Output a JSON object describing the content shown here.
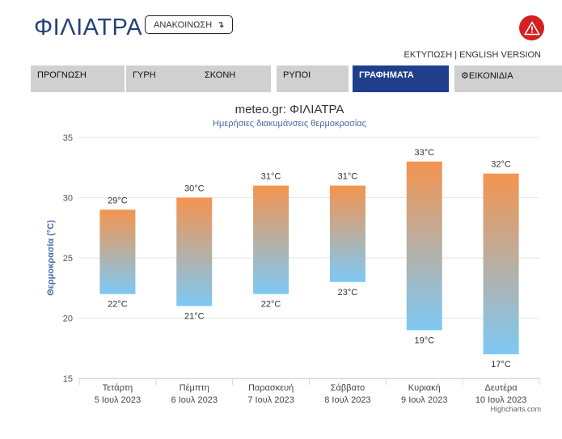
{
  "header": {
    "title": "ΦΙΛΙΑΤΡΑ",
    "announce_label": "ΑΝΑΚΟΙΝΩΣΗ",
    "print_label": "ΕΚΤΥΠΩΣΗ",
    "separator": "|",
    "english_label": "ENGLISH VERSION",
    "alert_color": "#d42020",
    "alert_icon": "warning-triangle-icon"
  },
  "tabs": [
    {
      "label": "ΠΡΟΓΝΩΣΗ",
      "active": false
    },
    {
      "label": "ΓΥΡΗ",
      "active": false
    },
    {
      "label": "ΣΚΟΝΗ",
      "active": false
    },
    {
      "label": "ΡΥΠΟΙ",
      "active": false
    },
    {
      "label": "ΓΡΑΦΗΜΑΤΑ",
      "active": true
    },
    {
      "label": "ΕΙΚΟΝΙΔΙΑ",
      "active": false,
      "icon": "gear-icon"
    }
  ],
  "chart_data": {
    "type": "bar",
    "subtype": "columnrange",
    "title": "meteo.gr: ΦΙΛΙΑΤΡΑ",
    "subtitle": "Ημερήσιες διακυμάνσεις θερμοκρασίας",
    "ylabel": "Θερμοκρασία (°C)",
    "xlabel": "",
    "ylim": [
      15,
      35
    ],
    "yticks": [
      15,
      20,
      25,
      30,
      35
    ],
    "grid": true,
    "categories": [
      {
        "day": "Τετάρτη",
        "date": "5 Ιουλ 2023"
      },
      {
        "day": "Πέμπτη",
        "date": "6 Ιουλ 2023"
      },
      {
        "day": "Παρασκευή",
        "date": "7 Ιουλ 2023"
      },
      {
        "day": "Σάββατο",
        "date": "8 Ιουλ 2023"
      },
      {
        "day": "Κυριακή",
        "date": "9 Ιουλ 2023"
      },
      {
        "day": "Δευτέρα",
        "date": "10 Ιουλ 2023"
      }
    ],
    "series": [
      {
        "low": [
          22,
          21,
          22,
          23,
          19,
          17
        ],
        "high": [
          29,
          30,
          31,
          31,
          33,
          32
        ]
      }
    ],
    "unit": "°C",
    "colors": {
      "high": "#f4944f",
      "low": "#7dc9f5"
    },
    "credit": "Highcharts.com"
  }
}
